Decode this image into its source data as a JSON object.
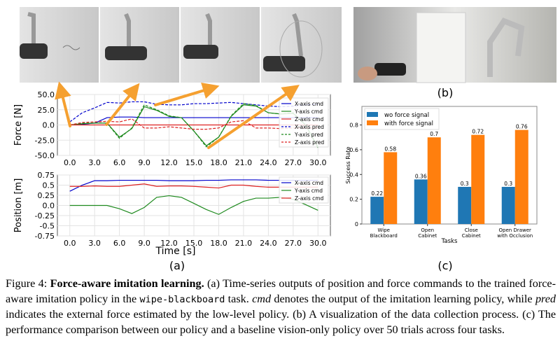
{
  "panel_labels": {
    "a": "(a)",
    "b": "(b)",
    "c": "(c)"
  },
  "colors": {
    "x": "#0000cc",
    "y": "#1f8a1f",
    "z": "#dd2222",
    "arrow": "#f5a030",
    "bar_wo": "#1f77b4",
    "bar_with": "#ff7f0e"
  },
  "chart_data": [
    {
      "type": "line",
      "title": "",
      "xlabel": "",
      "ylabel": "Force [N]",
      "xlim": [
        -1.5,
        31.5
      ],
      "ylim": [
        -50,
        50
      ],
      "xticks": [
        "0.0",
        "3.0",
        "6.0",
        "9.0",
        "12.0",
        "15.0",
        "18.0",
        "21.0",
        "24.0",
        "27.0",
        "30.0"
      ],
      "yticks": [
        "50.0",
        "25.0",
        "0.0",
        "-25.0",
        "-50.0"
      ],
      "grid": true,
      "legend_position": "right",
      "x": [
        0,
        1.5,
        3,
        4.5,
        6,
        7.5,
        9,
        10.5,
        12,
        13.5,
        15,
        16.5,
        18,
        19.5,
        21,
        22.5,
        24,
        25.5,
        27,
        28.5,
        30
      ],
      "series": [
        {
          "name": "X-axis cmd",
          "color": "x",
          "dash": false,
          "values": [
            0,
            1,
            3,
            12,
            13,
            13,
            12,
            12,
            12,
            12,
            12,
            12,
            12,
            12,
            12,
            12,
            12,
            12,
            12,
            12,
            12
          ]
        },
        {
          "name": "Y-axis cmd",
          "color": "y",
          "dash": false,
          "values": [
            0,
            2,
            3,
            3,
            -20,
            -6,
            30,
            24,
            14,
            12,
            -10,
            -34,
            -20,
            14,
            33,
            31,
            20,
            18,
            19,
            0,
            -36
          ]
        },
        {
          "name": "Z-axis cmd",
          "color": "z",
          "dash": false,
          "values": [
            0,
            0,
            0,
            0,
            0,
            0,
            0,
            0,
            0,
            0,
            0,
            0,
            0,
            0,
            0,
            0,
            0,
            0,
            0,
            0,
            0
          ]
        },
        {
          "name": "X-axis pred",
          "color": "x",
          "dash": true,
          "values": [
            5,
            20,
            28,
            37,
            36,
            38,
            38,
            34,
            33,
            33,
            35,
            35,
            36,
            37,
            35,
            33,
            31,
            30,
            31,
            33,
            34
          ]
        },
        {
          "name": "Y-axis pred",
          "color": "y",
          "dash": true,
          "values": [
            0,
            3,
            3,
            3,
            -22,
            -5,
            33,
            25,
            15,
            12,
            -10,
            -36,
            -20,
            15,
            35,
            32,
            20,
            18,
            20,
            0,
            -38
          ]
        },
        {
          "name": "Z-axis pred",
          "color": "z",
          "dash": true,
          "values": [
            0,
            4,
            5,
            6,
            5,
            10,
            -5,
            -5,
            -3,
            -5,
            -7,
            -7,
            -5,
            5,
            7,
            -5,
            -5,
            -6,
            -5,
            -5,
            -5
          ]
        }
      ]
    },
    {
      "type": "line",
      "title": "",
      "xlabel": "Time [s]",
      "ylabel": "Position [m]",
      "xlim": [
        -1.5,
        31.5
      ],
      "ylim": [
        -0.75,
        0.75
      ],
      "xticks": [
        "0.0",
        "3.0",
        "6.0",
        "9.0",
        "12.0",
        "15.0",
        "18.0",
        "21.0",
        "24.0",
        "27.0",
        "30.0"
      ],
      "yticks": [
        "0.75",
        "0.5",
        "0.25",
        "0.0",
        "-0.25",
        "-0.5",
        "-0.75"
      ],
      "grid": true,
      "legend_position": "top-right",
      "x": [
        0,
        1.5,
        3,
        4.5,
        6,
        7.5,
        9,
        10.5,
        12,
        13.5,
        15,
        16.5,
        18,
        19.5,
        21,
        22.5,
        24,
        25.5,
        27,
        28.5,
        30
      ],
      "series": [
        {
          "name": "X-axis cmd",
          "color": "x",
          "dash": false,
          "values": [
            0.35,
            0.5,
            0.61,
            0.61,
            0.62,
            0.62,
            0.62,
            0.62,
            0.61,
            0.61,
            0.61,
            0.62,
            0.62,
            0.63,
            0.63,
            0.63,
            0.62,
            0.62,
            0.62,
            0.62,
            0.62
          ]
        },
        {
          "name": "Y-axis cmd",
          "color": "y",
          "dash": false,
          "values": [
            0,
            0,
            0,
            0,
            -0.08,
            -0.2,
            -0.05,
            0.2,
            0.24,
            0.2,
            0.05,
            -0.1,
            -0.22,
            -0.05,
            0.1,
            0.18,
            0.18,
            0.2,
            0.15,
            0.02,
            -0.12
          ]
        },
        {
          "name": "Z-axis cmd",
          "color": "z",
          "dash": false,
          "values": [
            0.47,
            0.47,
            0.48,
            0.47,
            0.47,
            0.5,
            0.53,
            0.47,
            0.48,
            0.48,
            0.47,
            0.45,
            0.43,
            0.5,
            0.5,
            0.47,
            0.45,
            0.45,
            0.45,
            0.45,
            0.45
          ]
        }
      ]
    },
    {
      "type": "bar",
      "title": "",
      "xlabel": "Tasks",
      "ylabel": "Success Rate",
      "ylim": [
        0,
        0.95
      ],
      "yticks": [
        "0",
        "0.2",
        "0.4",
        "0.6",
        "0.8"
      ],
      "legend_position": "top-left",
      "categories": [
        [
          "Wipe",
          "Blackboard"
        ],
        [
          "Open",
          "Cabinet"
        ],
        [
          "Close",
          "Cabinet"
        ],
        [
          "Open Drawer",
          "with Occlusion"
        ]
      ],
      "series": [
        {
          "name": "wo force signal",
          "color": "bar_wo",
          "values": [
            0.22,
            0.36,
            0.3,
            0.3
          ],
          "labels": [
            "0.22",
            "0.36",
            "0.3",
            "0.3"
          ]
        },
        {
          "name": "with force signal",
          "color": "bar_with",
          "values": [
            0.58,
            0.7,
            0.72,
            0.76
          ],
          "labels": [
            "0.58",
            "0.7",
            "0.72",
            "0.76"
          ]
        }
      ]
    }
  ],
  "caption": {
    "prefix": "Figure 4: ",
    "title": "Force-aware imitation learning.",
    "t1": " (a) Time-series outputs of position and force commands to the trained force-aware imitation policy in the ",
    "code": "wipe-blackboard",
    "t2": " task. ",
    "cmd": "cmd",
    "t3": " denotes the output of the imitation learning policy, while ",
    "pred": "pred",
    "t4": " indicates the external force estimated by the low-level policy. (b) A visualization of the data collection process. (c) The performance comparison between our policy and a baseline vision-only policy over 50 trials across four tasks."
  }
}
